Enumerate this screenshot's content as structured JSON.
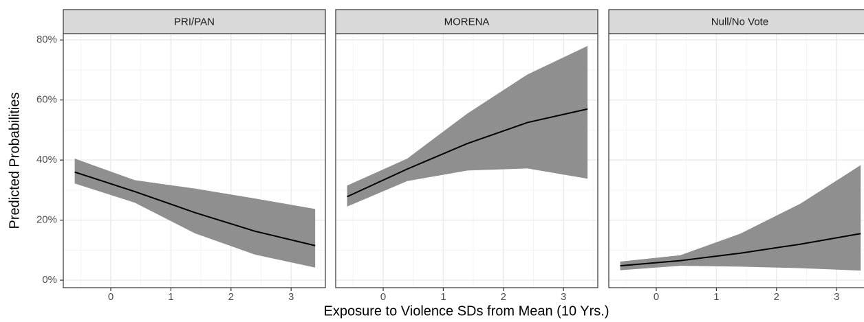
{
  "x_label": "Exposure to Violence SDs from Mean (10 Yrs.)",
  "y_label": "Predicted Probabilities",
  "chart_data": [
    {
      "type": "line",
      "title": "PRI/PAN",
      "line_color": "#000000",
      "band_color": "#8f8f8f",
      "grid": true,
      "x": [
        -0.6,
        0.4,
        1.4,
        2.4,
        3.4
      ],
      "values": [
        36,
        29.5,
        22.5,
        16.3,
        11.5
      ],
      "lower": [
        32.2,
        25.8,
        15.6,
        8.5,
        4.2
      ],
      "upper": [
        40.5,
        33.3,
        30.5,
        27.2,
        23.7
      ],
      "xlim": [
        -0.79,
        3.57
      ],
      "xticks": [
        0,
        1,
        2,
        3
      ],
      "ylim": [
        -2.5,
        82.1
      ],
      "yticks": [
        {
          "value": 0,
          "label": "0%"
        },
        {
          "value": 20,
          "label": "20%"
        },
        {
          "value": 40,
          "label": "40%"
        },
        {
          "value": 60,
          "label": "60%"
        },
        {
          "value": 80,
          "label": "80%"
        }
      ]
    },
    {
      "type": "line",
      "title": "MORENA",
      "line_color": "#000000",
      "band_color": "#8f8f8f",
      "grid": true,
      "x": [
        -0.6,
        0.4,
        1.4,
        2.4,
        3.4
      ],
      "values": [
        27.8,
        37,
        45.5,
        52.5,
        57
      ],
      "lower": [
        24.5,
        33,
        36.5,
        37.2,
        33.8
      ],
      "upper": [
        31.5,
        40.5,
        55.5,
        68.5,
        78
      ],
      "xlim": [
        -0.79,
        3.57
      ],
      "xticks": [
        0,
        1,
        2,
        3
      ],
      "ylim": [
        -2.5,
        82.1
      ]
    },
    {
      "type": "line",
      "title": "Null/No Vote",
      "line_color": "#000000",
      "band_color": "#8f8f8f",
      "grid": true,
      "x": [
        -0.6,
        0.4,
        1.4,
        2.4,
        3.4
      ],
      "values": [
        4.8,
        6.5,
        9,
        12,
        15.5
      ],
      "lower": [
        3.3,
        4.8,
        4.5,
        4,
        3.2
      ],
      "upper": [
        6.2,
        8.3,
        15.5,
        25.5,
        38.3
      ],
      "xlim": [
        -0.79,
        3.57
      ],
      "xticks": [
        0,
        1,
        2,
        3
      ],
      "ylim": [
        -2.5,
        82.1
      ]
    }
  ]
}
